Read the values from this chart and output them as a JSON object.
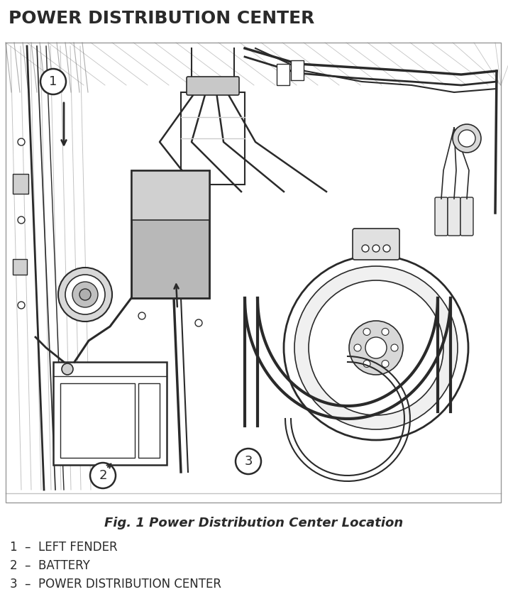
{
  "title": "POWER DISTRIBUTION CENTER",
  "title_fontsize": 18,
  "title_color": "#2a2a2a",
  "title_fontweight": "bold",
  "fig_caption": "Fig. 1 Power Distribution Center Location",
  "fig_caption_fontsize": 13,
  "legend_items": [
    "1  –  LEFT FENDER",
    "2  –  BATTERY",
    "3  –  POWER DISTRIBUTION CENTER"
  ],
  "legend_fontsize": 12,
  "bg_color": "#ffffff",
  "line_color": "#2a2a2a",
  "gray_fill": "#c0c0c0",
  "light_fill": "#e8e8e8",
  "mid_gray": "#a0a0a0"
}
